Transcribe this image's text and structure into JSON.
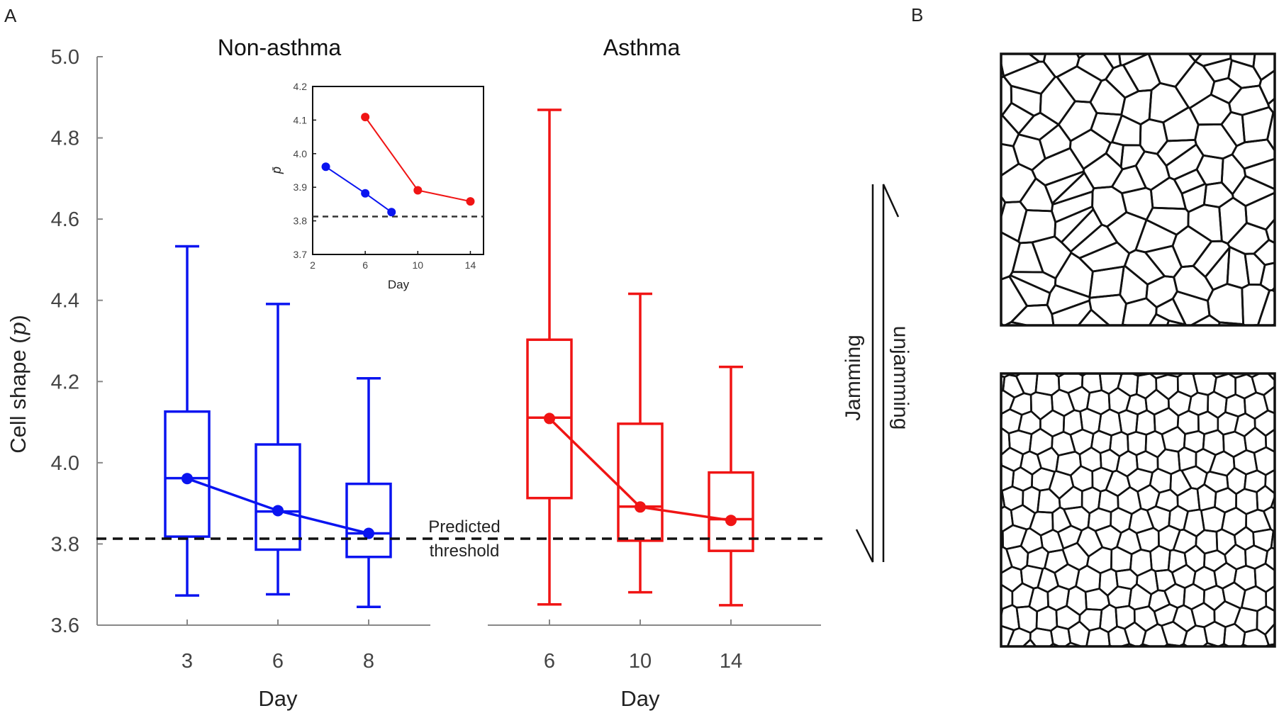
{
  "panel_labels": {
    "a": "A",
    "b": "B"
  },
  "colors": {
    "non_asthma": "#0a14f0",
    "asthma": "#f01414",
    "threshold": "#111111",
    "axis": "#888888"
  },
  "chart_data": [
    {
      "type": "box",
      "id": "main",
      "ylabel": "Cell shape",
      "ylabel_symbol": "p",
      "ylim": [
        3.6,
        5.0
      ],
      "yticks": [
        "3.6",
        "3.8",
        "4.0",
        "4.2",
        "4.4",
        "4.6",
        "4.8",
        "5.0"
      ],
      "threshold": {
        "value": 3.813,
        "label_line1": "Predicted",
        "label_line2": "threshold"
      },
      "groups": [
        {
          "name": "Non-asthma",
          "xlabel": "Day",
          "color": "#0a14f0",
          "boxes": [
            {
              "day": "3",
              "min": 3.673,
              "q1": 3.818,
              "median": 3.962,
              "q3": 4.126,
              "max": 4.533,
              "mean": 3.961
            },
            {
              "day": "6",
              "min": 3.676,
              "q1": 3.786,
              "median": 3.88,
              "q3": 4.045,
              "max": 4.391,
              "mean": 3.882
            },
            {
              "day": "8",
              "min": 3.645,
              "q1": 3.768,
              "median": 3.826,
              "q3": 3.948,
              "max": 4.208,
              "mean": 3.826
            }
          ]
        },
        {
          "name": "Asthma",
          "xlabel": "Day",
          "color": "#f01414",
          "boxes": [
            {
              "day": "6",
              "min": 3.651,
              "q1": 3.913,
              "median": 4.111,
              "q3": 4.303,
              "max": 4.869,
              "mean": 4.109
            },
            {
              "day": "10",
              "min": 3.681,
              "q1": 3.808,
              "median": 3.892,
              "q3": 4.096,
              "max": 4.416,
              "mean": 3.891
            },
            {
              "day": "14",
              "min": 3.649,
              "q1": 3.783,
              "median": 3.861,
              "q3": 3.976,
              "max": 4.236,
              "mean": 3.858
            }
          ]
        }
      ]
    },
    {
      "type": "line",
      "id": "inset",
      "xlabel": "Day",
      "ylabel": "p̄",
      "xlim": [
        2,
        15
      ],
      "ylim": [
        3.7,
        4.2
      ],
      "xticks": [
        "2",
        "6",
        "10",
        "14"
      ],
      "yticks": [
        "3.7",
        "3.8",
        "3.9",
        "4.0",
        "4.1",
        "4.2"
      ],
      "threshold": 3.813,
      "series": [
        {
          "name": "Non-asthma",
          "color": "#0a14f0",
          "x": [
            3,
            6,
            8
          ],
          "y": [
            3.961,
            3.882,
            3.826
          ]
        },
        {
          "name": "Asthma",
          "color": "#f01414",
          "x": [
            6,
            10,
            14
          ],
          "y": [
            4.109,
            3.891,
            3.858
          ]
        }
      ]
    }
  ],
  "transition": {
    "left_label": "Jamming",
    "right_label": "unjamming"
  },
  "tissue_panels": [
    {
      "name": "unjammed-tissue",
      "description_state": "unjammed"
    },
    {
      "name": "jammed-tissue",
      "description_state": "jammed"
    }
  ]
}
